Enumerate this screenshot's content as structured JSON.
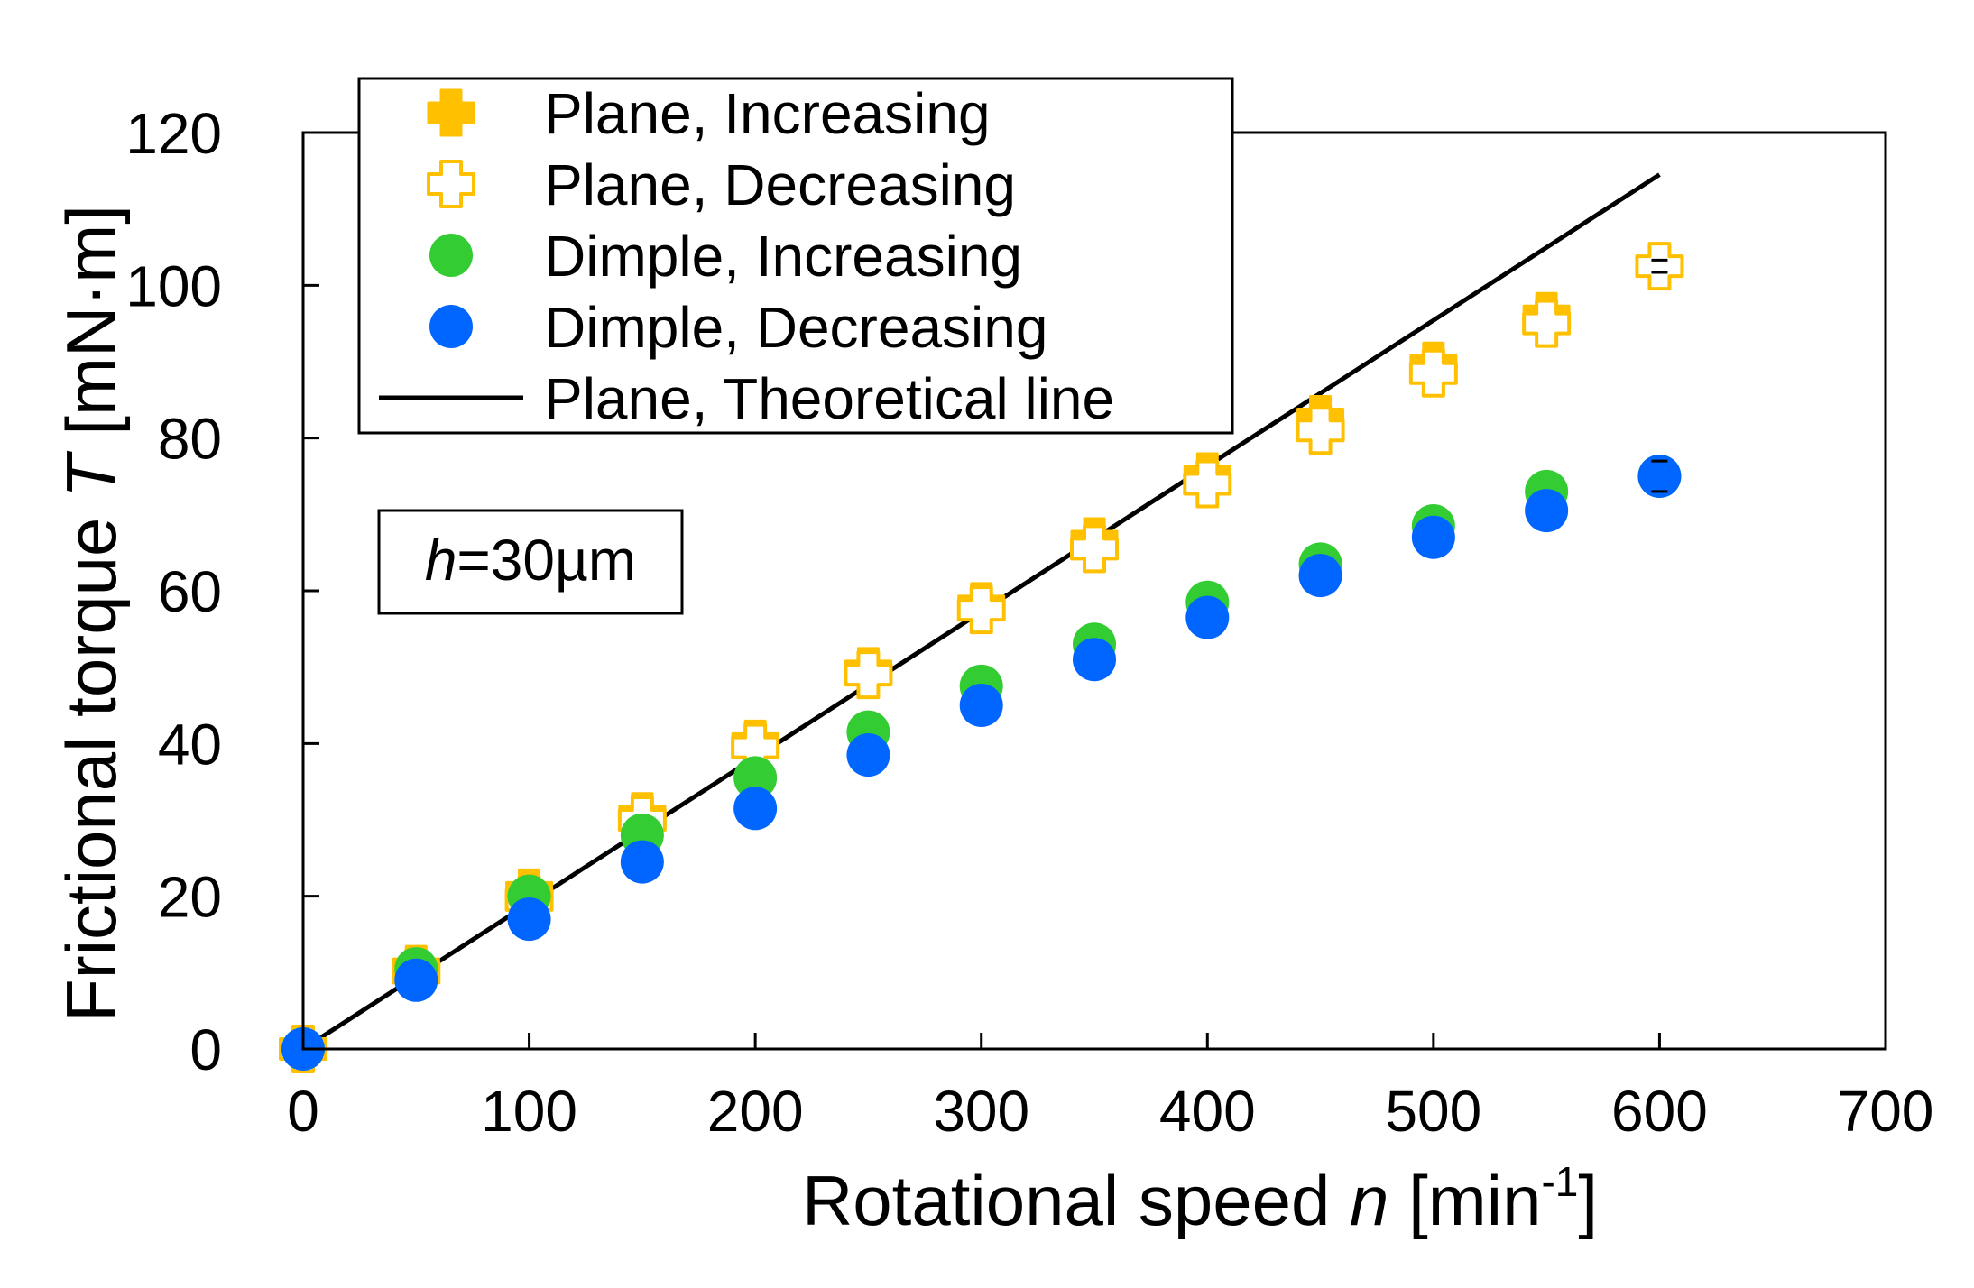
{
  "chart_data": {
    "type": "scatter",
    "xlabel": {
      "main": "Rotational speed ",
      "var": "n",
      "unit_pre": " [min",
      "sup": "-1",
      "unit_post": "]"
    },
    "ylabel": {
      "main": "Frictional torque ",
      "var": "T",
      "unit": " [mN·m]"
    },
    "xlim": [
      0,
      700
    ],
    "ylim": [
      0,
      120
    ],
    "xticks": [
      "0",
      "100",
      "200",
      "300",
      "400",
      "500",
      "600",
      "700"
    ],
    "yticks": [
      "0",
      "20",
      "40",
      "60",
      "80",
      "100",
      "120"
    ],
    "grid": false,
    "legend_position": "top-left",
    "annotation": {
      "var": "h",
      "text": "=30µm"
    },
    "series": [
      {
        "name": "Plane, Increasing",
        "marker": "cross-filled",
        "color": "#FFC000",
        "x": [
          0,
          50,
          100,
          150,
          200,
          250,
          300,
          350,
          400,
          450,
          500,
          550,
          600
        ],
        "y": [
          0,
          10.5,
          20.5,
          30.5,
          40,
          49.5,
          58,
          66.5,
          75,
          82.5,
          89.5,
          96,
          102.5
        ]
      },
      {
        "name": "Plane, Decreasing",
        "marker": "cross-open",
        "color": "#FFC000",
        "x": [
          0,
          50,
          100,
          150,
          200,
          250,
          300,
          350,
          400,
          450,
          500,
          550,
          600
        ],
        "y": [
          0,
          10,
          19.5,
          30,
          39.5,
          49,
          57.5,
          65.5,
          74,
          81,
          88.5,
          95,
          102.5
        ]
      },
      {
        "name": "Dimple, Increasing",
        "marker": "circle-filled",
        "color": "#33CC33",
        "x": [
          0,
          50,
          100,
          150,
          200,
          250,
          300,
          350,
          400,
          450,
          500,
          550,
          600
        ],
        "y": [
          0,
          10.5,
          20,
          28,
          35.5,
          41.5,
          47.5,
          53,
          58.5,
          63.5,
          68.5,
          73,
          75
        ]
      },
      {
        "name": "Dimple, Decreasing",
        "marker": "circle-filled",
        "color": "#0066FF",
        "x": [
          0,
          50,
          100,
          150,
          200,
          250,
          300,
          350,
          400,
          450,
          500,
          550,
          600
        ],
        "y": [
          0,
          9,
          17,
          24.5,
          31.5,
          38.5,
          45,
          51,
          56.5,
          62,
          67,
          70.5,
          75
        ]
      },
      {
        "name": "Plane, Theoretical line",
        "marker": "line",
        "color": "#000000",
        "x": [
          0,
          600
        ],
        "y": [
          0,
          114.5
        ]
      }
    ]
  }
}
